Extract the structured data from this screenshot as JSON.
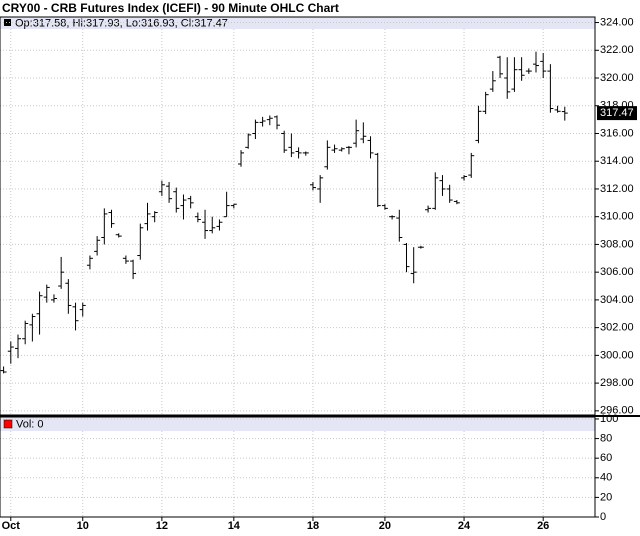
{
  "chart_data": {
    "type": "ohlc",
    "title": "CRY00 - CRB Futures Index (ICEFI) - 90 Minute OHLC Chart",
    "legend_labels": [
      "Op:",
      ", Hi:",
      ", Lo:",
      ", Cl:"
    ],
    "x": [
      0,
      1,
      2,
      3,
      4,
      5,
      6,
      7,
      8,
      9,
      10,
      11,
      12,
      13,
      14,
      15,
      16,
      17,
      18,
      19,
      20,
      21,
      22,
      23,
      24,
      25,
      26,
      27,
      28,
      29,
      30,
      31,
      32,
      33,
      34,
      35,
      36,
      37,
      38,
      39,
      40,
      41,
      42,
      43,
      44,
      45,
      46,
      47,
      48,
      49,
      50,
      51,
      52,
      53,
      54,
      55,
      56,
      57,
      58,
      59,
      60,
      61,
      62,
      63,
      64,
      65,
      66,
      67,
      68,
      69,
      70,
      71,
      72,
      73,
      74,
      75,
      76,
      77,
      78
    ],
    "open": [
      298.9,
      300.3,
      300.5,
      301.2,
      302.2,
      303.0,
      304.2,
      304.0,
      305.0,
      305.2,
      303.5,
      303.3,
      306.5,
      307.5,
      308.5,
      310.3,
      308.7,
      307.0,
      306.8,
      307.2,
      309.5,
      310.0,
      311.8,
      312.2,
      311.8,
      310.8,
      311.3,
      310.0,
      309.6,
      309.0,
      309.3,
      310.0,
      310.8,
      313.8,
      315.0,
      316.0,
      316.8,
      317.0,
      317.2,
      316.0,
      315.0,
      314.7,
      314.6,
      312.3,
      312.0,
      313.6,
      314.8,
      314.8,
      315.0,
      315.3,
      315.6,
      315.5,
      314.5,
      310.8,
      310.0,
      309.9,
      308.0,
      305.9,
      307.8,
      310.5,
      310.6,
      312.6,
      312.0,
      311.1,
      312.8,
      313.0,
      315.5,
      317.6,
      319.2,
      321.5,
      320.0,
      319.2,
      320.6,
      320.5,
      321.0,
      321.2,
      320.5,
      317.7,
      317.58
    ],
    "high": [
      299.2,
      301.0,
      301.5,
      302.5,
      303.0,
      304.6,
      305.1,
      304.4,
      307.1,
      305.5,
      303.8,
      303.8,
      307.2,
      308.6,
      310.6,
      310.5,
      308.8,
      307.2,
      306.9,
      309.5,
      311.0,
      310.4,
      312.6,
      312.5,
      312.1,
      311.6,
      311.5,
      310.3,
      310.5,
      310.0,
      309.8,
      311.8,
      310.9,
      314.8,
      316.0,
      317.0,
      317.2,
      317.3,
      317.3,
      316.2,
      316.0,
      315.0,
      314.7,
      312.5,
      313.0,
      315.5,
      315.2,
      315.0,
      315.1,
      317.0,
      316.8,
      315.8,
      314.6,
      310.9,
      310.1,
      310.5,
      308.1,
      307.8,
      307.9,
      310.8,
      313.2,
      313.0,
      312.3,
      311.2,
      313.0,
      314.6,
      318.0,
      319.0,
      320.5,
      321.6,
      321.5,
      321.5,
      321.5,
      320.7,
      321.9,
      321.8,
      321.0,
      318.0,
      317.93
    ],
    "low": [
      298.7,
      299.4,
      299.8,
      300.8,
      301.0,
      301.5,
      303.8,
      303.8,
      304.8,
      303.0,
      301.8,
      302.8,
      306.2,
      307.2,
      308.0,
      309.2,
      308.5,
      306.6,
      305.5,
      306.9,
      309.0,
      309.6,
      311.5,
      311.0,
      310.3,
      309.8,
      310.6,
      309.6,
      308.4,
      308.8,
      309.0,
      310.0,
      310.6,
      313.6,
      314.9,
      315.6,
      316.5,
      316.6,
      316.3,
      314.6,
      314.3,
      314.2,
      314.4,
      311.9,
      311.0,
      313.4,
      314.6,
      314.7,
      314.5,
      315.0,
      315.3,
      314.2,
      310.7,
      310.5,
      309.8,
      308.2,
      306.0,
      305.2,
      307.7,
      310.3,
      310.5,
      311.5,
      311.0,
      310.9,
      312.6,
      312.8,
      315.3,
      317.4,
      319.0,
      320.0,
      318.5,
      319.0,
      319.8,
      320.3,
      320.4,
      320.0,
      317.5,
      317.5,
      316.93
    ],
    "close": [
      298.8,
      300.6,
      301.2,
      302.3,
      302.8,
      304.3,
      304.9,
      304.1,
      306.0,
      303.6,
      302.5,
      303.6,
      307.0,
      308.3,
      310.2,
      309.5,
      308.6,
      306.8,
      305.9,
      309.2,
      310.2,
      310.3,
      312.3,
      311.3,
      310.6,
      311.2,
      311.0,
      309.8,
      309.0,
      309.2,
      309.6,
      310.8,
      310.9,
      314.6,
      315.9,
      316.8,
      316.9,
      317.1,
      316.6,
      314.8,
      314.6,
      314.6,
      314.6,
      312.1,
      312.8,
      315.0,
      314.9,
      314.9,
      315.0,
      316.2,
      315.8,
      314.6,
      310.8,
      310.6,
      310.0,
      308.5,
      306.4,
      306.0,
      307.8,
      310.6,
      312.8,
      312.0,
      311.2,
      311.0,
      312.9,
      314.4,
      317.6,
      318.8,
      319.8,
      320.3,
      319.0,
      320.6,
      320.2,
      320.5,
      320.9,
      320.5,
      317.8,
      317.6,
      317.47
    ],
    "color": "#000000",
    "xlim": [
      -0.5,
      82.2
    ],
    "xticks": [
      {
        "value": 1,
        "label": "Oct"
      },
      {
        "value": 11,
        "label": "10"
      },
      {
        "value": 22,
        "label": "12"
      },
      {
        "value": 32,
        "label": "14"
      },
      {
        "value": 43,
        "label": "18"
      },
      {
        "value": 53,
        "label": "20"
      },
      {
        "value": 64,
        "label": "24"
      },
      {
        "value": 75,
        "label": "26"
      }
    ],
    "ylim": [
      295.7,
      324.4
    ],
    "yticks": [
      {
        "value": 296,
        "label": "296.00"
      },
      {
        "value": 298,
        "label": "298.00"
      },
      {
        "value": 300,
        "label": "300.00"
      },
      {
        "value": 302,
        "label": "302.00"
      },
      {
        "value": 304,
        "label": "304.00"
      },
      {
        "value": 306,
        "label": "306.00"
      },
      {
        "value": 308,
        "label": "308.00"
      },
      {
        "value": 310,
        "label": "310.00"
      },
      {
        "value": 312,
        "label": "312.00"
      },
      {
        "value": 314,
        "label": "314.00"
      },
      {
        "value": 316,
        "label": "316.00"
      },
      {
        "value": 318,
        "label": "318.00"
      },
      {
        "value": 320,
        "label": "320.00"
      },
      {
        "value": 322,
        "label": "322.00"
      },
      {
        "value": 324,
        "label": "324.00"
      }
    ],
    "grid": true,
    "volume_panel": {
      "label": "Vol:",
      "value": 0,
      "color": "#ff0000",
      "ylim": [
        0,
        102
      ],
      "yticks": [
        0,
        20,
        40,
        60,
        80,
        100
      ]
    }
  }
}
